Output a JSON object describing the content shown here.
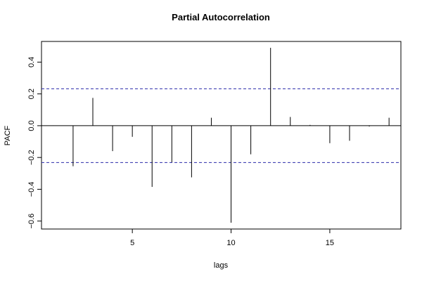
{
  "chart_data": {
    "type": "bar",
    "title": "Partial Autocorrelation",
    "xlabel": "lags",
    "ylabel": "PACF",
    "xlim": [
      0.4,
      18.6
    ],
    "ylim": [
      -0.65,
      0.53
    ],
    "x_ticks": [
      5,
      10,
      15
    ],
    "y_ticks": [
      -0.6,
      -0.4,
      -0.2,
      0.0,
      0.2,
      0.4
    ],
    "y_tick_labels": [
      "−0.6",
      "−0.4",
      "−0.2",
      "0.0",
      "0.2",
      "0.4"
    ],
    "confidence_bounds": [
      0.232,
      -0.232
    ],
    "lags": [
      1,
      2,
      3,
      4,
      5,
      6,
      7,
      8,
      9,
      10,
      11,
      12,
      13,
      14,
      15,
      16,
      17,
      18
    ],
    "values": [
      0.002,
      -0.255,
      0.175,
      -0.16,
      -0.07,
      -0.385,
      -0.23,
      -0.325,
      0.05,
      -0.61,
      -0.18,
      0.49,
      0.055,
      0.005,
      -0.11,
      -0.095,
      -0.005,
      0.05
    ],
    "colors": {
      "bars": "#000000",
      "bounds": "#2a2aaa",
      "frame": "#000000"
    }
  }
}
